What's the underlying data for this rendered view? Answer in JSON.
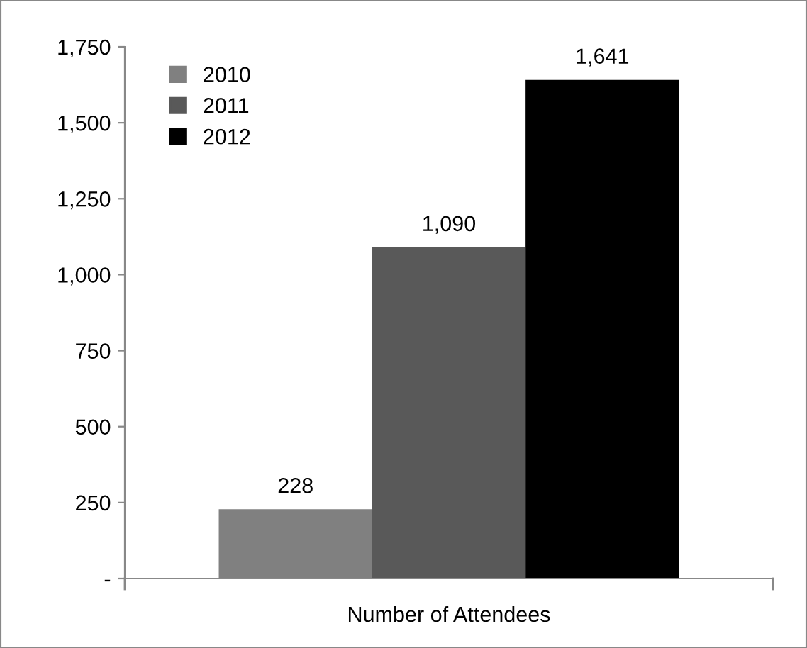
{
  "chart_data": {
    "type": "bar",
    "categories": [
      "Number of Attendees"
    ],
    "series": [
      {
        "name": "2010",
        "color": "#808080",
        "values": [
          228
        ],
        "value_labels": [
          "228"
        ]
      },
      {
        "name": "2011",
        "color": "#595959",
        "values": [
          1090
        ],
        "value_labels": [
          "1,090"
        ]
      },
      {
        "name": "2012",
        "color": "#000000",
        "values": [
          1641
        ],
        "value_labels": [
          "1,641"
        ]
      }
    ],
    "ylim": [
      0,
      1750
    ],
    "yticks": [
      {
        "value": 0,
        "label": "-"
      },
      250,
      500,
      750,
      {
        "value": 1000,
        "label": "1,000"
      },
      {
        "value": 1250,
        "label": "1,250"
      },
      {
        "value": 1500,
        "label": "1,500"
      },
      {
        "value": 1750,
        "label": "1,750"
      }
    ],
    "legend": "top left",
    "grid": false
  }
}
